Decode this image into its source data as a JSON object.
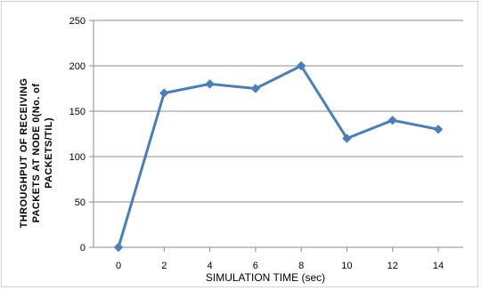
{
  "chart_data": {
    "type": "line",
    "x": [
      0,
      2,
      4,
      6,
      8,
      10,
      12,
      14
    ],
    "series": [
      {
        "values": [
          0,
          170,
          180,
          175,
          200,
          120,
          140,
          130
        ]
      }
    ],
    "x_tick_labels": [
      "0",
      "2",
      "4",
      "6",
      "8",
      "10",
      "12",
      "14"
    ],
    "y_tick_labels": [
      "0",
      "50",
      "100",
      "150",
      "200",
      "250"
    ],
    "ylim": [
      0,
      250
    ],
    "xlabel": "SIMULATION TIME (sec)",
    "ylabel_line1": "THROUGHPUT OF RECEIVING",
    "ylabel_line2": "PACKETS AT NODE 0(No. of",
    "ylabel_line3": "PACKETS/TIL)",
    "grid": "horizontal",
    "legend": "none",
    "line_color": "#4a7ebb",
    "grid_color": "#8c8c8c"
  }
}
